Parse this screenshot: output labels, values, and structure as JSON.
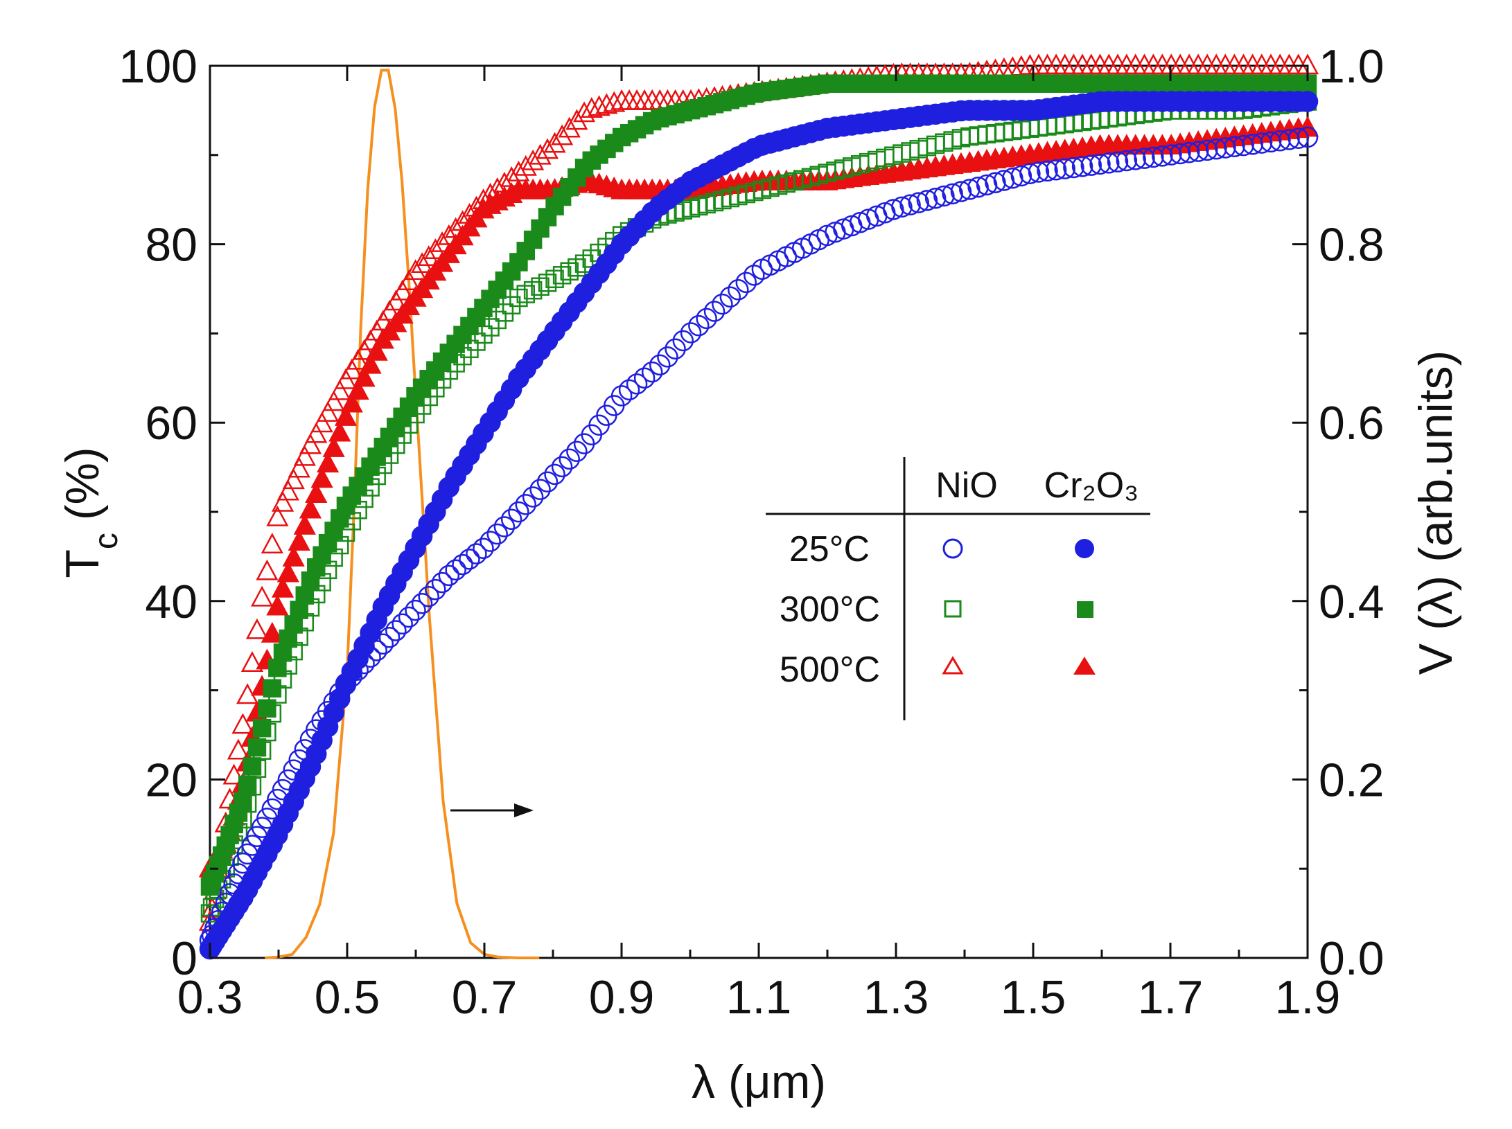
{
  "chart_data": {
    "type": "scatter",
    "title": "",
    "xlabel": "λ (μm)",
    "ylabel_main": "T",
    "ylabel_sub": "c",
    "ylabel_unit": "(%)",
    "y2label": "V (λ) (arb.units)",
    "xlim": [
      0.3,
      1.9
    ],
    "ylim": [
      0,
      100
    ],
    "y2lim": [
      0.0,
      1.0
    ],
    "x_ticks": [
      "0.3",
      "0.5",
      "0.7",
      "0.9",
      "1.1",
      "1.3",
      "1.5",
      "1.7",
      "1.9"
    ],
    "y_ticks": [
      "0",
      "20",
      "40",
      "60",
      "80",
      "100"
    ],
    "y2_ticks": [
      "0.0",
      "0.2",
      "0.4",
      "0.6",
      "0.8",
      "1.0"
    ],
    "legend": {
      "position": "center-right",
      "columns": [
        "NiO",
        "Cr₂O₃"
      ],
      "rows": [
        "25°C",
        "300°C",
        "500°C"
      ]
    },
    "series": [
      {
        "name": "NiO 25°C",
        "color": "#1f1fe0",
        "marker": "circle",
        "filled": false,
        "x": [
          0.3,
          0.35,
          0.4,
          0.45,
          0.5,
          0.55,
          0.6,
          0.65,
          0.7,
          0.75,
          0.8,
          0.85,
          0.9,
          0.95,
          1.0,
          1.1,
          1.2,
          1.3,
          1.4,
          1.5,
          1.6,
          1.7,
          1.8,
          1.9
        ],
        "y": [
          2,
          11,
          18,
          25,
          31,
          35,
          39,
          43,
          46,
          50,
          54,
          58,
          63,
          66,
          70,
          77,
          81,
          84,
          86,
          88,
          89,
          90,
          91,
          92
        ]
      },
      {
        "name": "Cr₂O₃ 25°C",
        "color": "#1f1fe0",
        "marker": "circle",
        "filled": true,
        "x": [
          0.3,
          0.35,
          0.4,
          0.45,
          0.5,
          0.55,
          0.6,
          0.65,
          0.7,
          0.75,
          0.8,
          0.85,
          0.9,
          0.95,
          1.0,
          1.1,
          1.2,
          1.3,
          1.4,
          1.5,
          1.6,
          1.7,
          1.8,
          1.9
        ],
        "y": [
          1,
          7,
          14,
          22,
          31,
          39,
          46,
          53,
          59,
          65,
          70,
          75,
          80,
          84,
          87,
          91,
          93,
          94,
          95,
          95,
          96,
          96,
          96,
          96
        ]
      },
      {
        "name": "NiO 300°C",
        "color": "#1a8a1a",
        "marker": "square",
        "filled": false,
        "x": [
          0.3,
          0.35,
          0.4,
          0.45,
          0.5,
          0.55,
          0.6,
          0.65,
          0.7,
          0.75,
          0.8,
          0.85,
          0.9,
          0.95,
          1.0,
          1.1,
          1.2,
          1.3,
          1.4,
          1.5,
          1.6,
          1.7,
          1.8,
          1.9
        ],
        "y": [
          5,
          16,
          30,
          40,
          48,
          55,
          61,
          66,
          70,
          74,
          76,
          78,
          81,
          83,
          84,
          86,
          88,
          90,
          92,
          93,
          94,
          95,
          95,
          96
        ]
      },
      {
        "name": "Cr₂O₃ 300°C",
        "color": "#1a8a1a",
        "marker": "square",
        "filled": true,
        "x": [
          0.3,
          0.35,
          0.4,
          0.45,
          0.5,
          0.55,
          0.6,
          0.65,
          0.7,
          0.75,
          0.8,
          0.85,
          0.9,
          0.95,
          1.0,
          1.1,
          1.2,
          1.3,
          1.4,
          1.5,
          1.6,
          1.7,
          1.8,
          1.9
        ],
        "y": [
          8,
          18,
          33,
          43,
          51,
          57,
          63,
          68,
          73,
          78,
          84,
          89,
          92,
          94,
          95,
          97,
          98,
          98,
          98,
          98,
          98,
          98,
          98,
          98
        ]
      },
      {
        "name": "NiO 500°C",
        "color": "#e81010",
        "marker": "triangle",
        "filled": false,
        "x": [
          0.3,
          0.325,
          0.35,
          0.375,
          0.4,
          0.45,
          0.5,
          0.55,
          0.6,
          0.65,
          0.7,
          0.75,
          0.8,
          0.85,
          0.9,
          0.95,
          1.0,
          1.1,
          1.2,
          1.3,
          1.4,
          1.5,
          1.6,
          1.7,
          1.8,
          1.9
        ],
        "y": [
          4,
          16,
          27,
          40,
          50,
          58,
          65,
          71,
          77,
          81,
          85,
          88,
          91,
          95,
          96,
          96,
          96,
          97,
          98,
          99,
          99,
          100,
          100,
          100,
          100,
          100
        ]
      },
      {
        "name": "Cr₂O₃ 500°C",
        "color": "#e81010",
        "marker": "triangle",
        "filled": true,
        "x": [
          0.3,
          0.325,
          0.35,
          0.375,
          0.4,
          0.45,
          0.5,
          0.55,
          0.6,
          0.65,
          0.7,
          0.75,
          0.8,
          0.85,
          0.9,
          0.95,
          1.0,
          1.1,
          1.2,
          1.3,
          1.4,
          1.5,
          1.6,
          1.7,
          1.8,
          1.9
        ],
        "y": [
          10,
          13,
          20,
          30,
          40,
          51,
          61,
          69,
          74,
          79,
          84,
          86,
          86,
          87,
          86,
          86,
          86,
          87,
          87,
          88,
          89,
          90,
          91,
          91,
          92,
          93
        ]
      },
      {
        "name": "V(λ)",
        "color": "#f5901e",
        "marker": "line",
        "axis": "right",
        "x": [
          0.38,
          0.4,
          0.42,
          0.44,
          0.46,
          0.48,
          0.5,
          0.51,
          0.52,
          0.53,
          0.54,
          0.55,
          0.56,
          0.57,
          0.58,
          0.59,
          0.6,
          0.62,
          0.64,
          0.66,
          0.68,
          0.7,
          0.72,
          0.75,
          0.78
        ],
        "y": [
          0.0,
          0.001,
          0.004,
          0.023,
          0.06,
          0.139,
          0.323,
          0.503,
          0.71,
          0.862,
          0.954,
          0.995,
          0.995,
          0.952,
          0.87,
          0.757,
          0.631,
          0.381,
          0.175,
          0.061,
          0.017,
          0.004,
          0.001,
          0.0,
          0.0
        ]
      }
    ]
  }
}
